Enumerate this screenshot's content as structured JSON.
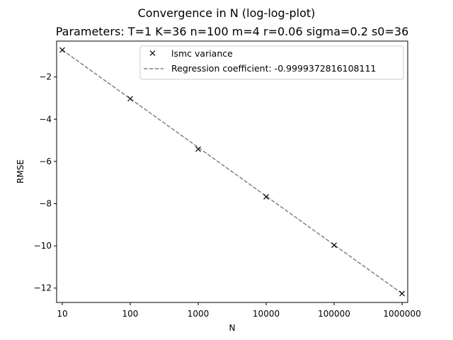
{
  "chart_data": {
    "type": "line",
    "title": "Convergence in N (log-log-plot)",
    "subtitle": "Parameters: T=1 K=36 n=100 m=4 r=0.06 sigma=0.2 s0=36",
    "xlabel": "N",
    "ylabel": "RMSE",
    "x_scale": "log10",
    "x_ticks": [
      "10",
      "100",
      "1000",
      "10000",
      "100000",
      "1000000"
    ],
    "xlim": [
      8.26,
      1210000
    ],
    "y_ticks": [
      -12,
      -10,
      -8,
      -6,
      -4,
      -2
    ],
    "ylim": [
      -12.68,
      -0.3
    ],
    "grid": false,
    "legend_position": "top-right",
    "series": [
      {
        "name": "lsmc variance",
        "kind": "markers",
        "marker": "x",
        "color": "#000000",
        "x": [
          10,
          100,
          1000,
          10000,
          100000,
          1000000
        ],
        "y": [
          -0.72,
          -3.03,
          -5.42,
          -7.68,
          -9.97,
          -12.26
        ]
      },
      {
        "name": "Regression coefficient: -0.9999372816108111",
        "kind": "line",
        "style": "dashed",
        "color": "#808080",
        "x": [
          10,
          1000000
        ],
        "y": [
          -0.72,
          -12.26
        ]
      }
    ]
  }
}
